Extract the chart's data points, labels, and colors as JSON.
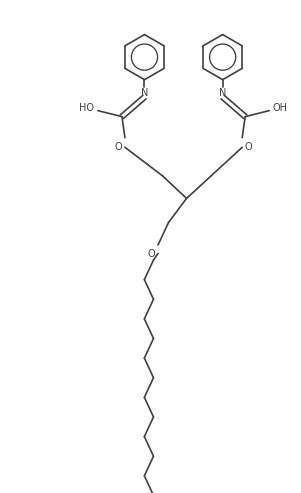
{
  "bg_color": "#ffffff",
  "line_color": "#404040",
  "line_width": 1.2,
  "font_size": 7.0,
  "figsize": [
    3.01,
    4.93
  ],
  "dpi": 100,
  "xlim": [
    -1,
    10
  ],
  "ylim": [
    0,
    16.4
  ]
}
